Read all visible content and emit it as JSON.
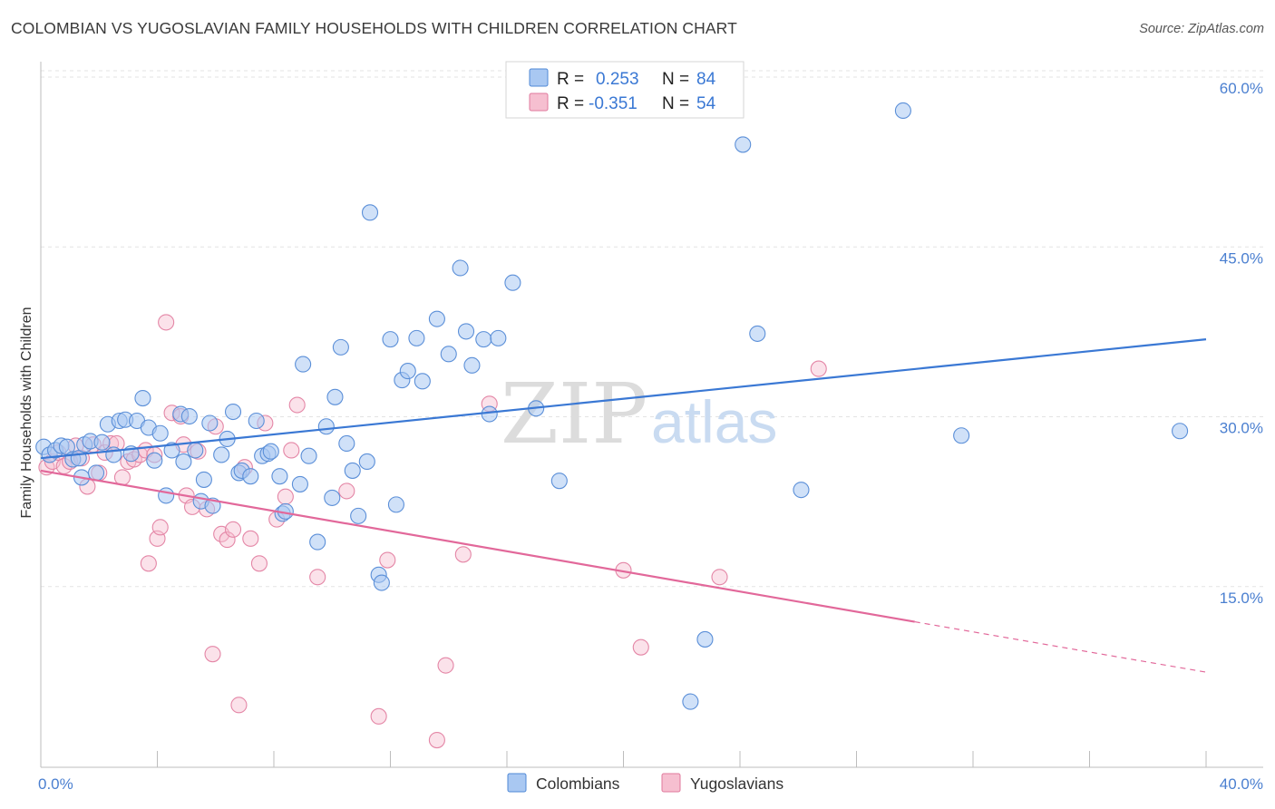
{
  "title": "COLOMBIAN VS YUGOSLAVIAN FAMILY HOUSEHOLDS WITH CHILDREN CORRELATION CHART",
  "source": "Source: ZipAtlas.com",
  "watermark": {
    "zip": "ZIP",
    "atlas": "atlas"
  },
  "legend_top": [
    {
      "r_label": "R =",
      "r_value": "0.253",
      "n_label": "N =",
      "n_value": "84",
      "color": "#a9c8f2",
      "stroke": "#4f88d6"
    },
    {
      "r_label": "R =",
      "r_value": "-0.351",
      "n_label": "N =",
      "n_value": "54",
      "color": "#f6bfd0",
      "stroke": "#e07a9d"
    }
  ],
  "legend_bottom": [
    {
      "label": "Colombians",
      "color": "#a9c8f2",
      "stroke": "#4f88d6"
    },
    {
      "label": "Yugoslavians",
      "color": "#f6bfd0",
      "stroke": "#e07a9d"
    }
  ],
  "chart_data": {
    "type": "scatter",
    "title": "COLOMBIAN VS YUGOSLAVIAN FAMILY HOUSEHOLDS WITH CHILDREN CORRELATION CHART",
    "xlabel": "",
    "ylabel": "Family Households with Children",
    "xlim": [
      0,
      40
    ],
    "ylim": [
      0,
      60
    ],
    "x_tick_labels": [
      {
        "value": 0,
        "label": "0.0%"
      },
      {
        "value": 40,
        "label": "40.0%"
      }
    ],
    "y_tick_labels": [
      {
        "value": 60,
        "label": "60.0%"
      },
      {
        "value": 45,
        "label": "45.0%"
      },
      {
        "value": 30,
        "label": "30.0%"
      },
      {
        "value": 15,
        "label": "15.0%"
      }
    ],
    "colors": {
      "blue": "#3a78d4",
      "pink": "#e2689a"
    },
    "series": [
      {
        "name": "Colombians",
        "trend": {
          "x_start": 0,
          "y_start": 27.3,
          "x_end": 40,
          "y_end": 37.8,
          "dashed_from": null
        },
        "points": [
          [
            0.1,
            28.3
          ],
          [
            0.3,
            27.6
          ],
          [
            0.5,
            28.0
          ],
          [
            0.7,
            28.4
          ],
          [
            0.9,
            28.3
          ],
          [
            1.1,
            27.2
          ],
          [
            1.3,
            27.3
          ],
          [
            1.4,
            25.6
          ],
          [
            1.5,
            28.5
          ],
          [
            1.7,
            28.8
          ],
          [
            1.9,
            26.0
          ],
          [
            2.1,
            28.7
          ],
          [
            2.3,
            30.3
          ],
          [
            2.5,
            27.6
          ],
          [
            2.7,
            30.6
          ],
          [
            2.9,
            30.7
          ],
          [
            3.1,
            27.7
          ],
          [
            3.3,
            30.6
          ],
          [
            3.5,
            32.6
          ],
          [
            3.7,
            30.0
          ],
          [
            3.9,
            27.1
          ],
          [
            4.1,
            29.5
          ],
          [
            4.3,
            24.0
          ],
          [
            4.5,
            28.0
          ],
          [
            4.8,
            31.2
          ],
          [
            4.9,
            27.0
          ],
          [
            5.1,
            31.0
          ],
          [
            5.3,
            28.0
          ],
          [
            5.5,
            23.5
          ],
          [
            5.6,
            25.4
          ],
          [
            5.8,
            30.4
          ],
          [
            5.9,
            23.1
          ],
          [
            6.2,
            27.6
          ],
          [
            6.4,
            29.0
          ],
          [
            6.6,
            31.4
          ],
          [
            6.8,
            26.0
          ],
          [
            6.9,
            26.2
          ],
          [
            7.2,
            25.7
          ],
          [
            7.4,
            30.6
          ],
          [
            7.6,
            27.5
          ],
          [
            7.8,
            27.7
          ],
          [
            7.9,
            27.9
          ],
          [
            8.2,
            25.7
          ],
          [
            8.3,
            22.4
          ],
          [
            8.4,
            22.6
          ],
          [
            8.9,
            25.0
          ],
          [
            9.0,
            35.6
          ],
          [
            9.2,
            27.5
          ],
          [
            9.5,
            19.9
          ],
          [
            9.8,
            30.1
          ],
          [
            10.0,
            23.8
          ],
          [
            10.1,
            32.7
          ],
          [
            10.3,
            37.1
          ],
          [
            10.5,
            28.6
          ],
          [
            10.7,
            26.2
          ],
          [
            10.9,
            22.2
          ],
          [
            11.2,
            27.0
          ],
          [
            11.3,
            49.0
          ],
          [
            11.6,
            17.0
          ],
          [
            11.7,
            16.3
          ],
          [
            12.0,
            37.8
          ],
          [
            12.2,
            23.2
          ],
          [
            12.4,
            34.2
          ],
          [
            12.6,
            35.0
          ],
          [
            12.9,
            37.9
          ],
          [
            13.1,
            34.1
          ],
          [
            13.6,
            39.6
          ],
          [
            14.0,
            36.5
          ],
          [
            14.4,
            44.1
          ],
          [
            14.6,
            38.5
          ],
          [
            14.8,
            35.5
          ],
          [
            15.2,
            37.8
          ],
          [
            15.4,
            31.2
          ],
          [
            15.7,
            37.9
          ],
          [
            16.2,
            42.8
          ],
          [
            17.0,
            31.7
          ],
          [
            17.8,
            25.3
          ],
          [
            22.3,
            5.8
          ],
          [
            22.8,
            11.3
          ],
          [
            24.1,
            55.0
          ],
          [
            24.6,
            38.3
          ],
          [
            26.1,
            24.5
          ],
          [
            29.6,
            58.0
          ],
          [
            31.6,
            29.3
          ],
          [
            39.1,
            29.7
          ]
        ]
      },
      {
        "name": "Yugoslavians",
        "trend": {
          "x_start": 0,
          "y_start": 26.2,
          "x_end": 40,
          "y_end": 8.4,
          "dashed_from": 30.0
        },
        "points": [
          [
            0.2,
            26.5
          ],
          [
            0.4,
            27.0
          ],
          [
            0.6,
            27.8
          ],
          [
            0.8,
            26.6
          ],
          [
            1.0,
            27.0
          ],
          [
            1.2,
            28.4
          ],
          [
            1.4,
            27.3
          ],
          [
            1.6,
            24.8
          ],
          [
            1.8,
            28.5
          ],
          [
            2.0,
            26.0
          ],
          [
            2.2,
            27.8
          ],
          [
            2.4,
            28.6
          ],
          [
            2.6,
            28.6
          ],
          [
            2.8,
            25.6
          ],
          [
            3.0,
            27.0
          ],
          [
            3.2,
            27.2
          ],
          [
            3.4,
            27.6
          ],
          [
            3.6,
            28.0
          ],
          [
            3.7,
            18.0
          ],
          [
            3.9,
            27.6
          ],
          [
            4.0,
            20.2
          ],
          [
            4.1,
            21.2
          ],
          [
            4.3,
            39.3
          ],
          [
            4.5,
            31.3
          ],
          [
            4.8,
            31.0
          ],
          [
            4.9,
            28.5
          ],
          [
            5.0,
            24.0
          ],
          [
            5.2,
            23.0
          ],
          [
            5.4,
            27.9
          ],
          [
            5.7,
            22.8
          ],
          [
            5.9,
            10.0
          ],
          [
            6.0,
            30.1
          ],
          [
            6.2,
            20.6
          ],
          [
            6.4,
            20.1
          ],
          [
            6.6,
            21.0
          ],
          [
            6.8,
            5.5
          ],
          [
            7.0,
            26.5
          ],
          [
            7.2,
            20.2
          ],
          [
            7.5,
            18.0
          ],
          [
            7.7,
            30.4
          ],
          [
            8.1,
            21.9
          ],
          [
            8.4,
            23.9
          ],
          [
            8.6,
            28.0
          ],
          [
            8.8,
            32.0
          ],
          [
            9.5,
            16.8
          ],
          [
            10.5,
            24.4
          ],
          [
            11.6,
            4.5
          ],
          [
            11.9,
            18.3
          ],
          [
            13.6,
            2.4
          ],
          [
            13.9,
            9.0
          ],
          [
            14.5,
            18.8
          ],
          [
            15.4,
            32.1
          ],
          [
            20.0,
            17.4
          ],
          [
            20.6,
            10.6
          ],
          [
            23.3,
            16.8
          ],
          [
            26.7,
            35.2
          ]
        ]
      }
    ]
  }
}
